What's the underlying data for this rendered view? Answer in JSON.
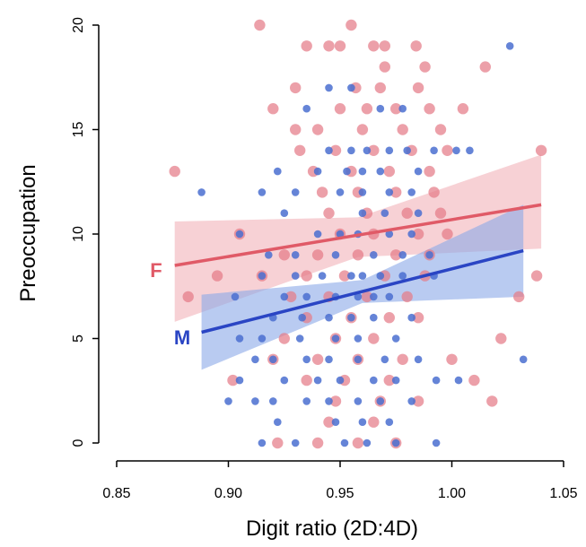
{
  "chart_data": {
    "type": "scatter",
    "xlabel": "Digit ratio (2D:4D)",
    "ylabel": "Preoccupation",
    "xlim": [
      0.85,
      1.05
    ],
    "ylim": [
      0,
      20
    ],
    "xticks": [
      "0.85",
      "0.90",
      "0.95",
      "1.00",
      "1.05"
    ],
    "yticks": [
      "0",
      "5",
      "10",
      "15",
      "20"
    ],
    "grid": false,
    "colors": {
      "F": "#e05a67",
      "M": "#2a45c4",
      "F_point": "#e57b88",
      "M_point": "#4a6fd0",
      "F_band": "#f2b8be",
      "M_band": "#8aa8e8"
    },
    "series": [
      {
        "name": "F",
        "fit": {
          "x": [
            0.876,
            1.04
          ],
          "y": [
            8.5,
            11.4
          ]
        },
        "ci_upper": {
          "x": [
            0.876,
            0.958,
            1.04
          ],
          "y": [
            10.6,
            10.8,
            13.8
          ]
        },
        "ci_lower": {
          "x": [
            0.876,
            0.958,
            1.04
          ],
          "y": [
            5.8,
            8.9,
            9.3
          ]
        },
        "points": [
          [
            0.914,
            20
          ],
          [
            0.955,
            20
          ],
          [
            0.935,
            19
          ],
          [
            0.945,
            19
          ],
          [
            0.95,
            19
          ],
          [
            0.965,
            19
          ],
          [
            0.97,
            19
          ],
          [
            0.984,
            19
          ],
          [
            0.97,
            18
          ],
          [
            0.988,
            18
          ],
          [
            1.015,
            18
          ],
          [
            0.93,
            17
          ],
          [
            0.957,
            17
          ],
          [
            0.968,
            17
          ],
          [
            0.985,
            17
          ],
          [
            0.92,
            16
          ],
          [
            0.95,
            16
          ],
          [
            0.962,
            16
          ],
          [
            0.975,
            16
          ],
          [
            0.99,
            16
          ],
          [
            1.005,
            16
          ],
          [
            0.93,
            15
          ],
          [
            0.94,
            15
          ],
          [
            0.96,
            15
          ],
          [
            0.978,
            15
          ],
          [
            0.995,
            15
          ],
          [
            0.932,
            14
          ],
          [
            0.948,
            14
          ],
          [
            0.965,
            14
          ],
          [
            0.982,
            14
          ],
          [
            0.998,
            14
          ],
          [
            1.04,
            14
          ],
          [
            0.876,
            13
          ],
          [
            0.938,
            13
          ],
          [
            0.955,
            13
          ],
          [
            0.972,
            13
          ],
          [
            0.99,
            13
          ],
          [
            0.942,
            12
          ],
          [
            0.958,
            12
          ],
          [
            0.975,
            12
          ],
          [
            0.992,
            12
          ],
          [
            0.945,
            11
          ],
          [
            0.962,
            11
          ],
          [
            0.98,
            11
          ],
          [
            0.995,
            11
          ],
          [
            0.905,
            10
          ],
          [
            0.95,
            10
          ],
          [
            0.965,
            10
          ],
          [
            0.985,
            10
          ],
          [
            0.998,
            10
          ],
          [
            0.925,
            9
          ],
          [
            0.94,
            9
          ],
          [
            0.958,
            9
          ],
          [
            0.975,
            9
          ],
          [
            0.99,
            9
          ],
          [
            0.895,
            8
          ],
          [
            0.915,
            8
          ],
          [
            0.935,
            8
          ],
          [
            0.952,
            8
          ],
          [
            0.97,
            8
          ],
          [
            0.988,
            8
          ],
          [
            1.038,
            8
          ],
          [
            0.882,
            7
          ],
          [
            0.928,
            7
          ],
          [
            0.945,
            7
          ],
          [
            0.962,
            7
          ],
          [
            0.98,
            7
          ],
          [
            1.03,
            7
          ],
          [
            0.935,
            6
          ],
          [
            0.955,
            6
          ],
          [
            0.972,
            6
          ],
          [
            0.985,
            6
          ],
          [
            0.925,
            5
          ],
          [
            0.948,
            5
          ],
          [
            0.965,
            5
          ],
          [
            1.022,
            5
          ],
          [
            0.92,
            4
          ],
          [
            0.94,
            4
          ],
          [
            0.958,
            4
          ],
          [
            0.978,
            4
          ],
          [
            1.0,
            4
          ],
          [
            0.902,
            3
          ],
          [
            0.935,
            3
          ],
          [
            0.952,
            3
          ],
          [
            0.972,
            3
          ],
          [
            1.01,
            3
          ],
          [
            0.948,
            2
          ],
          [
            0.968,
            2
          ],
          [
            0.985,
            2
          ],
          [
            1.018,
            2
          ],
          [
            0.945,
            1
          ],
          [
            0.965,
            1
          ],
          [
            0.922,
            0
          ],
          [
            0.94,
            0
          ],
          [
            0.958,
            0
          ],
          [
            0.975,
            0
          ]
        ]
      },
      {
        "name": "M",
        "fit": {
          "x": [
            0.888,
            1.032
          ],
          "y": [
            5.3,
            9.2
          ]
        },
        "ci_upper": {
          "x": [
            0.888,
            0.96,
            1.032
          ],
          "y": [
            7.1,
            7.8,
            11.4
          ]
        },
        "ci_lower": {
          "x": [
            0.888,
            0.96,
            1.032
          ],
          "y": [
            3.5,
            6.7,
            7.0
          ]
        },
        "points": [
          [
            1.026,
            19
          ],
          [
            0.945,
            17
          ],
          [
            0.955,
            17
          ],
          [
            0.935,
            16
          ],
          [
            0.968,
            16
          ],
          [
            0.978,
            16
          ],
          [
            0.945,
            14
          ],
          [
            0.955,
            14
          ],
          [
            0.962,
            14
          ],
          [
            0.972,
            14
          ],
          [
            0.98,
            14
          ],
          [
            0.992,
            14
          ],
          [
            1.002,
            14
          ],
          [
            1.008,
            14
          ],
          [
            0.94,
            13
          ],
          [
            0.953,
            13
          ],
          [
            0.96,
            13
          ],
          [
            0.968,
            13
          ],
          [
            0.985,
            13
          ],
          [
            0.922,
            13
          ],
          [
            0.888,
            12
          ],
          [
            0.915,
            12
          ],
          [
            0.93,
            12
          ],
          [
            0.95,
            12
          ],
          [
            0.96,
            12
          ],
          [
            0.972,
            12
          ],
          [
            0.982,
            12
          ],
          [
            0.925,
            11
          ],
          [
            0.96,
            11
          ],
          [
            0.97,
            11
          ],
          [
            0.985,
            11
          ],
          [
            0.905,
            10
          ],
          [
            0.94,
            10
          ],
          [
            0.95,
            10
          ],
          [
            0.958,
            10
          ],
          [
            0.972,
            10
          ],
          [
            0.982,
            10
          ],
          [
            0.918,
            9
          ],
          [
            0.93,
            9
          ],
          [
            0.948,
            9
          ],
          [
            0.965,
            9
          ],
          [
            0.978,
            9
          ],
          [
            0.99,
            9
          ],
          [
            0.915,
            8
          ],
          [
            0.93,
            8
          ],
          [
            0.942,
            8
          ],
          [
            0.955,
            8
          ],
          [
            0.96,
            8
          ],
          [
            0.968,
            8
          ],
          [
            0.978,
            8
          ],
          [
            0.992,
            8
          ],
          [
            0.903,
            7
          ],
          [
            0.925,
            7
          ],
          [
            0.935,
            7
          ],
          [
            0.948,
            7
          ],
          [
            0.958,
            7
          ],
          [
            0.965,
            7
          ],
          [
            0.972,
            7
          ],
          [
            0.92,
            6
          ],
          [
            0.933,
            6
          ],
          [
            0.945,
            6
          ],
          [
            0.955,
            6
          ],
          [
            0.965,
            6
          ],
          [
            0.982,
            6
          ],
          [
            0.905,
            5
          ],
          [
            0.915,
            5
          ],
          [
            0.932,
            5
          ],
          [
            0.948,
            5
          ],
          [
            0.958,
            5
          ],
          [
            0.975,
            5
          ],
          [
            0.912,
            4
          ],
          [
            0.92,
            4
          ],
          [
            0.935,
            4
          ],
          [
            0.945,
            4
          ],
          [
            0.958,
            4
          ],
          [
            0.97,
            4
          ],
          [
            0.985,
            4
          ],
          [
            1.032,
            4
          ],
          [
            0.905,
            3
          ],
          [
            0.925,
            3
          ],
          [
            0.94,
            3
          ],
          [
            0.95,
            3
          ],
          [
            0.965,
            3
          ],
          [
            0.975,
            3
          ],
          [
            0.993,
            3
          ],
          [
            1.003,
            3
          ],
          [
            0.9,
            2
          ],
          [
            0.912,
            2
          ],
          [
            0.92,
            2
          ],
          [
            0.935,
            2
          ],
          [
            0.945,
            2
          ],
          [
            0.958,
            2
          ],
          [
            0.968,
            2
          ],
          [
            0.982,
            2
          ],
          [
            0.922,
            1
          ],
          [
            0.948,
            1
          ],
          [
            0.96,
            1
          ],
          [
            0.972,
            1
          ],
          [
            0.915,
            0
          ],
          [
            0.93,
            0
          ],
          [
            0.952,
            0
          ],
          [
            0.962,
            0
          ],
          [
            0.975,
            0
          ],
          [
            0.993,
            0
          ]
        ]
      }
    ]
  }
}
